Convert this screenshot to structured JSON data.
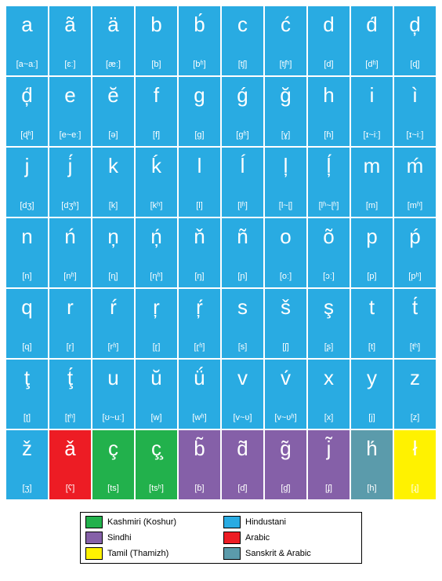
{
  "colors": {
    "hindustani": "#29abe2",
    "kashmiri": "#22b14c",
    "sindhi": "#8560a8",
    "arabic": "#ed1c24",
    "tamil": "#fff200",
    "sanskrit_arabic": "#5b9bab",
    "text": "#ffffff",
    "legend_border": "#000000",
    "background": "#ffffff"
  },
  "grid": {
    "columns": 10,
    "rows": 7
  },
  "cells": [
    {
      "glyph": "a",
      "ipa": "[a~aː]",
      "group": "hindustani"
    },
    {
      "glyph": "ã",
      "ipa": "[ɛː]",
      "group": "hindustani"
    },
    {
      "glyph": "ä",
      "ipa": "[æː]",
      "group": "hindustani"
    },
    {
      "glyph": "b",
      "ipa": "[b]",
      "group": "hindustani"
    },
    {
      "glyph": "b́",
      "ipa": "[bʱ]",
      "group": "hindustani"
    },
    {
      "glyph": "c",
      "ipa": "[tʃ]",
      "group": "hindustani"
    },
    {
      "glyph": "ć",
      "ipa": "[tʃʰ]",
      "group": "hindustani"
    },
    {
      "glyph": "d",
      "ipa": "[d]",
      "group": "hindustani"
    },
    {
      "glyph": "d́",
      "ipa": "[dʱ]",
      "group": "hindustani"
    },
    {
      "glyph": "ḑ",
      "ipa": "[ɖ]",
      "group": "hindustani"
    },
    {
      "glyph": "ḑ́",
      "ipa": "[ɖʱ]",
      "group": "hindustani"
    },
    {
      "glyph": "e",
      "ipa": "[e~eː]",
      "group": "hindustani"
    },
    {
      "glyph": "ĕ",
      "ipa": "[ə]",
      "group": "hindustani"
    },
    {
      "glyph": "f",
      "ipa": "[f]",
      "group": "hindustani"
    },
    {
      "glyph": "g",
      "ipa": "[ɡ]",
      "group": "hindustani"
    },
    {
      "glyph": "ǵ",
      "ipa": "[ɡʱ]",
      "group": "hindustani"
    },
    {
      "glyph": "ğ",
      "ipa": "[ɣ]",
      "group": "hindustani"
    },
    {
      "glyph": "h",
      "ipa": "[ɦ]",
      "group": "hindustani"
    },
    {
      "glyph": "i",
      "ipa": "[ɪ~iː]",
      "group": "hindustani"
    },
    {
      "glyph": "ì",
      "ipa": "[ɪ~iː]",
      "group": "hindustani"
    },
    {
      "glyph": "j",
      "ipa": "[dʒ]",
      "group": "hindustani"
    },
    {
      "glyph": "j́",
      "ipa": "[dʒʱ]",
      "group": "hindustani"
    },
    {
      "glyph": "k",
      "ipa": "[k]",
      "group": "hindustani"
    },
    {
      "glyph": "ḱ",
      "ipa": "[kʰ]",
      "group": "hindustani"
    },
    {
      "glyph": "l",
      "ipa": "[l]",
      "group": "hindustani"
    },
    {
      "glyph": "ĺ",
      "ipa": "[lʱ]",
      "group": "hindustani"
    },
    {
      "glyph": "ļ",
      "ipa": "[l~ɭ]",
      "group": "hindustani"
    },
    {
      "glyph": "ļ́",
      "ipa": "[lʱ~ɭʱ]",
      "group": "hindustani"
    },
    {
      "glyph": "m",
      "ipa": "[m]",
      "group": "hindustani"
    },
    {
      "glyph": "ḿ",
      "ipa": "[mʱ]",
      "group": "hindustani"
    },
    {
      "glyph": "n",
      "ipa": "[n]",
      "group": "hindustani"
    },
    {
      "glyph": "ń",
      "ipa": "[nʱ]",
      "group": "hindustani"
    },
    {
      "glyph": "ņ",
      "ipa": "[ɳ]",
      "group": "hindustani"
    },
    {
      "glyph": "ņ́",
      "ipa": "[ɳʱ]",
      "group": "hindustani"
    },
    {
      "glyph": "ň",
      "ipa": "[ŋ]",
      "group": "hindustani"
    },
    {
      "glyph": "ñ",
      "ipa": "[ɲ]",
      "group": "hindustani"
    },
    {
      "glyph": "o",
      "ipa": "[oː]",
      "group": "hindustani"
    },
    {
      "glyph": "õ",
      "ipa": "[ɔː]",
      "group": "hindustani"
    },
    {
      "glyph": "p",
      "ipa": "[p]",
      "group": "hindustani"
    },
    {
      "glyph": "ṕ",
      "ipa": "[pʰ]",
      "group": "hindustani"
    },
    {
      "glyph": "q",
      "ipa": "[q]",
      "group": "hindustani"
    },
    {
      "glyph": "r",
      "ipa": "[r]",
      "group": "hindustani"
    },
    {
      "glyph": "ŕ",
      "ipa": "[rʱ]",
      "group": "hindustani"
    },
    {
      "glyph": "ŗ",
      "ipa": "[ɽ]",
      "group": "hindustani"
    },
    {
      "glyph": "ŗ́",
      "ipa": "[ɽʱ]",
      "group": "hindustani"
    },
    {
      "glyph": "s",
      "ipa": "[s]",
      "group": "hindustani"
    },
    {
      "glyph": "š",
      "ipa": "[ʃ]",
      "group": "hindustani"
    },
    {
      "glyph": "ş",
      "ipa": "[ʂ]",
      "group": "hindustani"
    },
    {
      "glyph": "t",
      "ipa": "[t]",
      "group": "hindustani"
    },
    {
      "glyph": "t́",
      "ipa": "[tʰ]",
      "group": "hindustani"
    },
    {
      "glyph": "ţ",
      "ipa": "[ʈ]",
      "group": "hindustani"
    },
    {
      "glyph": "ţ́",
      "ipa": "[ʈʰ]",
      "group": "hindustani"
    },
    {
      "glyph": "u",
      "ipa": "[ʊ~uː]",
      "group": "hindustani"
    },
    {
      "glyph": "ŭ",
      "ipa": "[w]",
      "group": "hindustani"
    },
    {
      "glyph": "ǘ",
      "ipa": "[wʱ]",
      "group": "hindustani"
    },
    {
      "glyph": "v",
      "ipa": "[v~ʋ]",
      "group": "hindustani"
    },
    {
      "glyph": "v́",
      "ipa": "[v~ʋʱ]",
      "group": "hindustani"
    },
    {
      "glyph": "x",
      "ipa": "[x]",
      "group": "hindustani"
    },
    {
      "glyph": "y",
      "ipa": "[j]",
      "group": "hindustani"
    },
    {
      "glyph": "z",
      "ipa": "[z]",
      "group": "hindustani"
    },
    {
      "glyph": "ž",
      "ipa": "[ʒ]",
      "group": "hindustani"
    },
    {
      "glyph": "ǎ",
      "ipa": "[ʕ]",
      "group": "arabic"
    },
    {
      "glyph": "ç",
      "ipa": "[ts]",
      "group": "kashmiri"
    },
    {
      "glyph": "ç̧",
      "ipa": "[tsʰ]",
      "group": "kashmiri"
    },
    {
      "glyph": "b̃",
      "ipa": "[ɓ]",
      "group": "sindhi"
    },
    {
      "glyph": "d̃",
      "ipa": "[ɗ]",
      "group": "sindhi"
    },
    {
      "glyph": "g̃",
      "ipa": "[ɠ]",
      "group": "sindhi"
    },
    {
      "glyph": "j̃",
      "ipa": "[ʄ]",
      "group": "sindhi"
    },
    {
      "glyph": "h́",
      "ipa": "[h]",
      "group": "sanskrit_arabic"
    },
    {
      "glyph": "ł",
      "ipa": "[ɻ]",
      "group": "tamil"
    }
  ],
  "legend": [
    {
      "group": "kashmiri",
      "label": "Kashmiri (Koshur)"
    },
    {
      "group": "hindustani",
      "label": "Hindustani"
    },
    {
      "group": "sindhi",
      "label": "Sindhi"
    },
    {
      "group": "arabic",
      "label": "Arabic"
    },
    {
      "group": "tamil",
      "label": "Tamil (Thamizh)"
    },
    {
      "group": "sanskrit_arabic",
      "label": "Sanskrit & Arabic"
    }
  ]
}
